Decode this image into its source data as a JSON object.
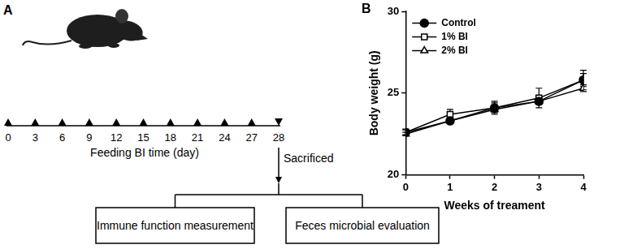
{
  "chart_data": {
    "type": "line",
    "annotations": [
      "B"
    ],
    "x_label": "Weeks of treament",
    "y_label": "Body weight (g)",
    "x": [
      0,
      1,
      2,
      3,
      4
    ],
    "xlim": [
      0,
      4
    ],
    "xticks": [
      0,
      1,
      2,
      3,
      4
    ],
    "ylim": [
      20,
      30
    ],
    "yticks": [
      20,
      25,
      30
    ],
    "grid": false,
    "legend": "upper left",
    "series": [
      {
        "name": "Control",
        "color": "#000000",
        "marker": "circle",
        "line_style": "solid",
        "values": [
          22.6,
          23.3,
          24.1,
          24.5,
          25.8
        ],
        "errors": [
          0.2,
          0.15,
          0.3,
          0.15,
          0.6
        ]
      },
      {
        "name": "1% BI",
        "color": "#000000",
        "marker": "open-square",
        "line_style": "solid",
        "values": [
          22.6,
          23.7,
          24.1,
          24.7,
          25.8
        ],
        "errors": [
          0.15,
          0.3,
          0.4,
          0.6,
          0.4
        ]
      },
      {
        "name": "2% BI",
        "color": "#000000",
        "marker": "open-triangle",
        "line_style": "solid",
        "values": [
          22.5,
          23.3,
          24.0,
          24.5,
          25.3
        ],
        "errors": [
          0.1,
          0.15,
          0.2,
          0.2,
          0.2
        ]
      }
    ]
  },
  "diagram": {
    "panel_label": "A",
    "timeline": {
      "ticks": [
        0,
        3,
        6,
        9,
        12,
        15,
        18,
        21,
        24,
        27,
        28
      ],
      "label": "Feeding BI time (day)",
      "end_label": "Sacrificed"
    },
    "boxes": [
      "Immune function measurement",
      "Feces microbial evaluation"
    ]
  }
}
